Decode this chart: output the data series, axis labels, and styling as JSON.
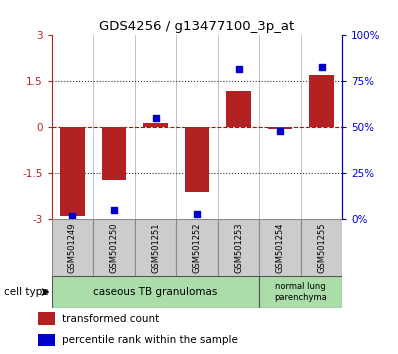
{
  "title": "GDS4256 / g13477100_3p_at",
  "samples": [
    "GSM501249",
    "GSM501250",
    "GSM501251",
    "GSM501252",
    "GSM501253",
    "GSM501254",
    "GSM501255"
  ],
  "transformed_count": [
    -2.9,
    -1.7,
    0.15,
    -2.1,
    1.2,
    -0.05,
    1.7
  ],
  "percentile_rank": [
    2,
    5,
    55,
    3,
    82,
    48,
    83
  ],
  "ylim_left": [
    -3,
    3
  ],
  "ylim_right": [
    0,
    100
  ],
  "yticks_left": [
    -3,
    -1.5,
    0,
    1.5,
    3
  ],
  "yticks_right": [
    0,
    25,
    50,
    75,
    100
  ],
  "ytick_labels_left": [
    "-3",
    "-1.5",
    "0",
    "1.5",
    "3"
  ],
  "ytick_labels_right": [
    "0%",
    "25%",
    "50%",
    "75%",
    "100%"
  ],
  "bar_color": "#B22222",
  "dot_color": "#0000CC",
  "zero_line_color": "#CC0000",
  "dotted_line_color": "#333333",
  "cell_type_groups": [
    {
      "label": "caseous TB granulomas",
      "samples_range": [
        0,
        4
      ],
      "color": "#AADDAA"
    },
    {
      "label": "normal lung\nparenchyma",
      "samples_range": [
        5,
        6
      ],
      "color": "#AADDAA"
    }
  ],
  "cell_type_label": "cell type",
  "legend_items": [
    {
      "color": "#B22222",
      "label": "transformed count"
    },
    {
      "color": "#0000CC",
      "label": "percentile rank within the sample"
    }
  ],
  "bar_width": 0.6,
  "sample_box_color": "#CCCCCC",
  "sample_box_edge": "#888888",
  "group_box_edge": "#555555"
}
